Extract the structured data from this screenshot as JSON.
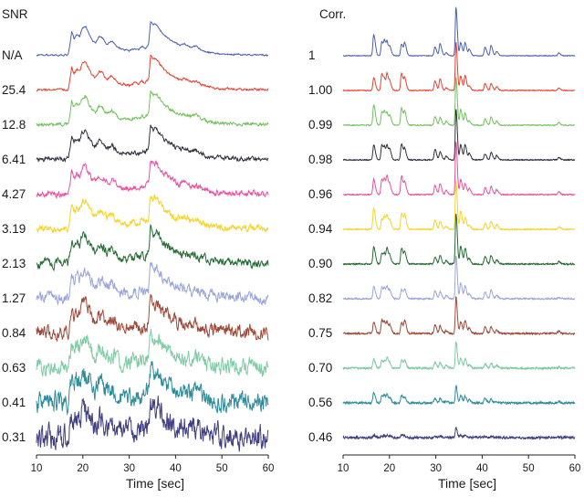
{
  "palette": [
    "#4a5fae",
    "#e8402f",
    "#72c15f",
    "#32303c",
    "#e9519f",
    "#f6d32b",
    "#276b35",
    "#9ba6d9",
    "#9e4a39",
    "#7ecba4",
    "#2f8c9b",
    "#403f80"
  ],
  "chart_data": [
    {
      "type": "line",
      "title": "SNR",
      "xlabel": "Time [sec]",
      "x_range": [
        10,
        60
      ],
      "x_ticks": [
        10,
        20,
        30,
        40,
        50,
        60
      ],
      "grid": false,
      "legend_position": "left-row-labels",
      "description": "Stacked noisy BOLD-like time courses; identical underlying signal with increasing noise as SNR decreases",
      "signal_template": {
        "t": [
          10,
          16.8,
          17.2,
          17.6,
          18.1,
          18.7,
          19.3,
          19.9,
          20.6,
          21.3,
          22.0,
          22.7,
          23.5,
          24.3,
          25.2,
          26.3,
          27.2,
          28.5,
          30.0,
          31.2,
          32.0,
          32.8,
          33.5,
          34.2,
          34.6,
          35.2,
          35.8,
          36.5,
          37.5,
          38.6,
          39.6,
          40.8,
          42.0,
          43.2,
          44.5,
          45.5,
          47.0,
          49.0,
          52.0,
          56.0,
          60.0
        ],
        "a": [
          0.02,
          0.02,
          0.3,
          0.68,
          0.48,
          0.62,
          0.55,
          0.8,
          0.85,
          0.62,
          0.45,
          0.38,
          0.55,
          0.5,
          0.32,
          0.42,
          0.28,
          0.18,
          0.15,
          0.22,
          0.17,
          0.26,
          0.22,
          0.35,
          1.0,
          0.88,
          0.92,
          0.78,
          0.6,
          0.48,
          0.4,
          0.3,
          0.33,
          0.25,
          0.28,
          0.18,
          0.1,
          0.06,
          0.04,
          0.03,
          0.02
        ]
      },
      "series": [
        {
          "name": "N/A",
          "color": "#4a5fae",
          "noise": 0.012
        },
        {
          "name": "25.4",
          "color": "#e8402f",
          "noise": 0.017
        },
        {
          "name": "12.8",
          "color": "#72c15f",
          "noise": 0.023
        },
        {
          "name": "6.41",
          "color": "#32303c",
          "noise": 0.03
        },
        {
          "name": "4.27",
          "color": "#e9519f",
          "noise": 0.04
        },
        {
          "name": "3.19",
          "color": "#f6d32b",
          "noise": 0.05
        },
        {
          "name": "2.13",
          "color": "#276b35",
          "noise": 0.062
        },
        {
          "name": "1.27",
          "color": "#9ba6d9",
          "noise": 0.078
        },
        {
          "name": "0.84",
          "color": "#9e4a39",
          "noise": 0.095
        },
        {
          "name": "0.63",
          "color": "#7ecba4",
          "noise": 0.115
        },
        {
          "name": "0.41",
          "color": "#2f8c9b",
          "noise": 0.14
        },
        {
          "name": "0.31",
          "color": "#403f80",
          "noise": 0.17
        }
      ]
    },
    {
      "type": "line",
      "title": "Corr.",
      "xlabel": "Time [sec]",
      "x_range": [
        10,
        60
      ],
      "x_ticks": [
        10,
        20,
        30,
        40,
        50,
        60
      ],
      "grid": false,
      "legend_position": "left-row-labels",
      "description": "Recovered spike trains; correlation with ground truth decreases with noise; dominant spike near t=34.3s pokes above each row",
      "spike_template": [
        {
          "t": 16.6,
          "a": 0.62
        },
        {
          "t": 18.35,
          "a": 0.5
        },
        {
          "t": 18.95,
          "a": 0.4
        },
        {
          "t": 19.5,
          "a": 0.46
        },
        {
          "t": 20.1,
          "a": 0.25
        },
        {
          "t": 22.6,
          "a": 0.55
        },
        {
          "t": 23.3,
          "a": 0.42
        },
        {
          "t": 29.8,
          "a": 0.32
        },
        {
          "t": 30.9,
          "a": 0.36
        },
        {
          "t": 32.2,
          "a": 0.12
        },
        {
          "t": 34.35,
          "a": 1.75,
          "tall": true
        },
        {
          "t": 35.35,
          "a": 0.55
        },
        {
          "t": 36.3,
          "a": 0.5
        },
        {
          "t": 37.2,
          "a": 0.18
        },
        {
          "t": 40.6,
          "a": 0.26
        },
        {
          "t": 41.9,
          "a": 0.3
        },
        {
          "t": 43.1,
          "a": 0.16
        },
        {
          "t": 56.5,
          "a": 0.09
        }
      ],
      "series": [
        {
          "name": "1",
          "color": "#4a5fae",
          "amp": 1.0,
          "tall": 1.0,
          "noise": 0.006
        },
        {
          "name": "1.00",
          "color": "#e8402f",
          "amp": 1.0,
          "tall": 1.0,
          "noise": 0.007
        },
        {
          "name": "0.99",
          "color": "#72c15f",
          "amp": 1.0,
          "tall": 1.0,
          "noise": 0.008
        },
        {
          "name": "0.98",
          "color": "#32303c",
          "amp": 1.0,
          "tall": 1.05,
          "noise": 0.009
        },
        {
          "name": "0.96",
          "color": "#e9519f",
          "amp": 1.0,
          "tall": 1.1,
          "noise": 0.01
        },
        {
          "name": "0.94",
          "color": "#f6d32b",
          "amp": 1.0,
          "tall": 1.0,
          "noise": 0.011
        },
        {
          "name": "0.90",
          "color": "#276b35",
          "amp": 0.95,
          "tall": 1.05,
          "noise": 0.012
        },
        {
          "name": "0.82",
          "color": "#9ba6d9",
          "amp": 0.85,
          "tall": 0.9,
          "noise": 0.013
        },
        {
          "name": "0.75",
          "color": "#9e4a39",
          "amp": 0.85,
          "tall": 0.75,
          "noise": 0.015
        },
        {
          "name": "0.70",
          "color": "#7ecba4",
          "amp": 0.65,
          "tall": 0.55,
          "noise": 0.017
        },
        {
          "name": "0.56",
          "color": "#2f8c9b",
          "amp": 0.5,
          "tall": 0.35,
          "noise": 0.018
        },
        {
          "name": "0.46",
          "color": "#403f80",
          "amp": 0.15,
          "tall": 0.2,
          "noise": 0.02
        }
      ]
    }
  ]
}
